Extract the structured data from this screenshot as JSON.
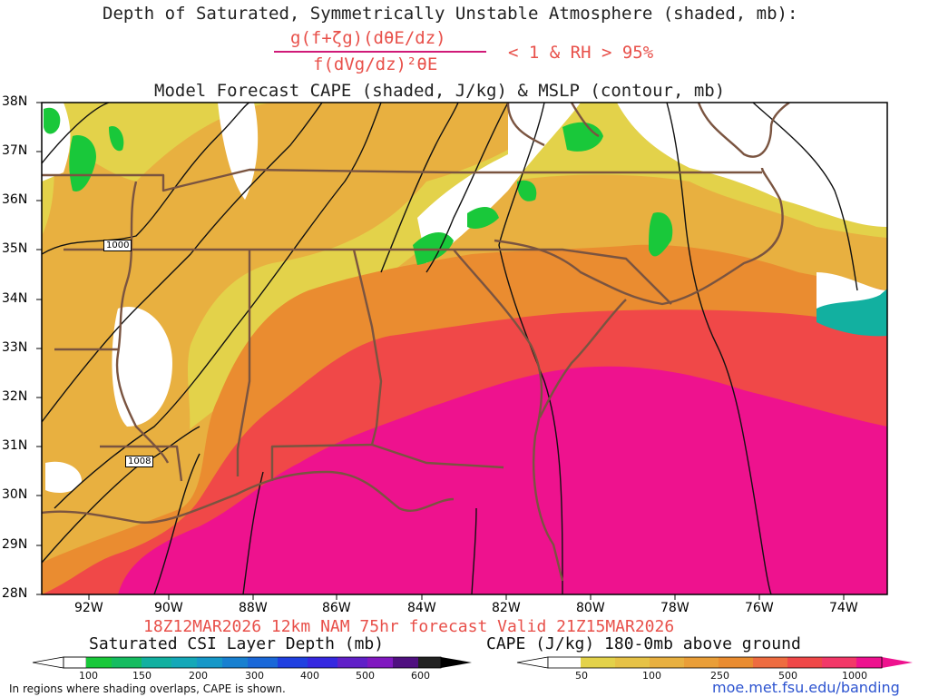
{
  "header": {
    "title_line1": "Depth of Saturated, Symmetrically Unstable Atmosphere (shaded, mb):",
    "formula_numerator": "g(f+ζg)(dθE/dz)",
    "formula_denominator": "f(dVg/dz)²θE",
    "condition": "< 1 & RH > 95%",
    "title_line3": "Model Forecast CAPE (shaded, J/kg) & MSLP (contour, mb)"
  },
  "map": {
    "lat_labels": [
      "38N",
      "37N",
      "36N",
      "35N",
      "34N",
      "33N",
      "32N",
      "31N",
      "30N",
      "29N",
      "28N"
    ],
    "lon_labels": [
      "92W",
      "90W",
      "88W",
      "86W",
      "84W",
      "82W",
      "80W",
      "78W",
      "76W",
      "74W"
    ],
    "contour_labels": [
      "1000",
      "1008"
    ]
  },
  "footer": {
    "run_info": "18Z12MAR2026 12km NAM 75hr forecast Valid 21Z15MAR2026",
    "csi_title": "Saturated CSI Layer Depth (mb)",
    "cape_title": "CAPE (J/kg) 180-0mb above ground",
    "csi_ticks": [
      "100",
      "150",
      "200",
      "300",
      "400",
      "500",
      "600"
    ],
    "cape_ticks": [
      "50",
      "100",
      "250",
      "500",
      "1000"
    ],
    "note": "In regions where shading overlaps, CAPE is shown.",
    "credit": "moe.met.fsu.edu/banding"
  },
  "colors": {
    "cape_yellow": "#e3d24a",
    "cape_lightorange": "#e8b040",
    "cape_orange": "#ea8c30",
    "cape_red": "#f04848",
    "cape_magenta": "#ee128e",
    "csi_green": "#19c83a",
    "csi_teal": "#12b0a0",
    "state_lines": "#7a5440",
    "accent_red": "#e8504a"
  }
}
